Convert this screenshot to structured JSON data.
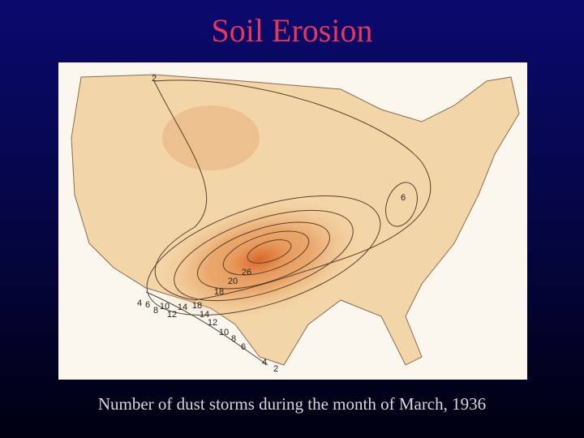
{
  "title": "Soil Erosion",
  "caption": "Number of dust storms during the month of March, 1936",
  "map": {
    "contour_labels": [
      "2",
      "6",
      "26",
      "20",
      "18",
      "4",
      "6",
      "8",
      "10",
      "12",
      "14",
      "18",
      "14",
      "12",
      "10",
      "8",
      "6",
      "4",
      "2"
    ]
  }
}
